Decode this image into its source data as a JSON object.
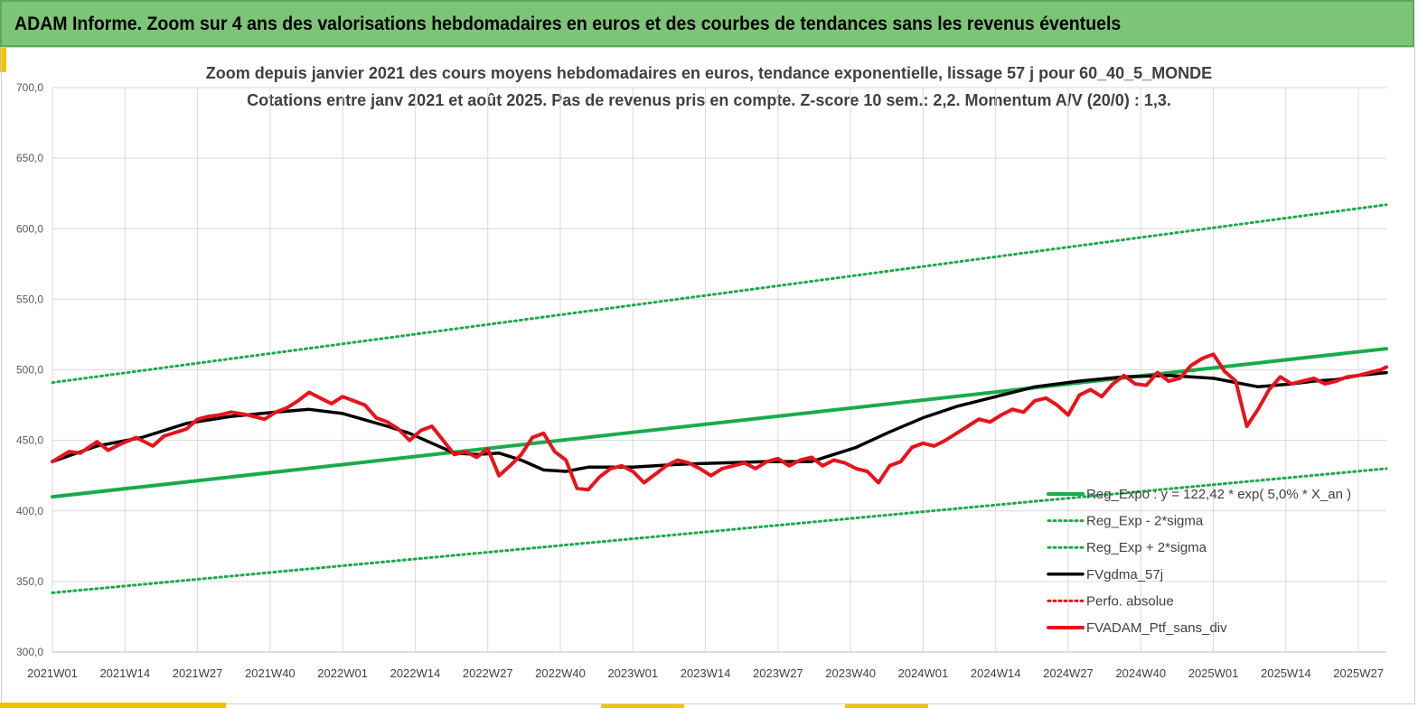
{
  "header": {
    "title": "ADAM Informe. Zoom sur 4 ans des valorisations hebdomadaires en euros et des courbes de tendances sans les revenus éventuels"
  },
  "chart_data": {
    "type": "line",
    "title": "Zoom depuis janvier 2021 des cours moyens hebdomadaires  en euros, tendance exponentielle, lissage 57 j pour 60_40_5_MONDE",
    "subtitle": "Cotations entre janv 2021 et août 2025. Pas de revenus pris en compte. Z-score 10 sem.: 2,2. Momentum A/V (20/0) : 1,3.",
    "xlabel": "",
    "ylabel": "",
    "ylim": [
      300,
      700
    ],
    "y_ticks": [
      "300,0",
      "350,0",
      "400,0",
      "450,0",
      "500,0",
      "550,0",
      "600,0",
      "650,0",
      "700,0"
    ],
    "x_ticks": [
      "2021W01",
      "2021W14",
      "2021W27",
      "2021W40",
      "2022W01",
      "2022W14",
      "2022W27",
      "2022W40",
      "2023W01",
      "2023W14",
      "2023W27",
      "2023W40",
      "2024W01",
      "2024W14",
      "2024W27",
      "2024W40",
      "2025W01",
      "2025W14",
      "2025W27"
    ],
    "x_range_weeks": [
      0,
      239
    ],
    "grid": true,
    "legend_position": "bottom-right",
    "series": [
      {
        "name": "Reg_Expo : y = 122,42 * exp( 5,0% *  X_an )",
        "style": "solid-thick",
        "color": "#1aab4a",
        "x": [
          0,
          239
        ],
        "values": [
          410,
          515
        ]
      },
      {
        "name": "Reg_Exp - 2*sigma",
        "style": "dotted",
        "color": "#1aab4a",
        "x": [
          0,
          239
        ],
        "values": [
          342,
          430
        ]
      },
      {
        "name": "Reg_Exp + 2*sigma",
        "style": "dotted",
        "color": "#1aab4a",
        "x": [
          0,
          239
        ],
        "values": [
          491,
          617
        ]
      },
      {
        "name": "FVgdma_57j",
        "style": "solid",
        "color": "#000000",
        "x": [
          0,
          8,
          16,
          24,
          32,
          40,
          46,
          52,
          60,
          64,
          68,
          72,
          76,
          80,
          84,
          88,
          92,
          96,
          100,
          104,
          108,
          112,
          120,
          128,
          136,
          144,
          150,
          156,
          162,
          168,
          176,
          184,
          192,
          200,
          208,
          216,
          222,
          226,
          230,
          234,
          239
        ],
        "values": [
          435,
          446,
          452,
          462,
          467,
          470,
          472,
          469,
          460,
          455,
          448,
          441,
          440,
          441,
          436,
          429,
          428,
          431,
          431,
          431,
          432,
          433,
          434,
          435,
          435,
          445,
          456,
          466,
          474,
          480,
          488,
          492,
          495,
          496,
          494,
          488,
          490,
          492,
          493,
          496,
          498
        ]
      },
      {
        "name": "Perfo. absolue",
        "style": "dotted",
        "color": "#e8131b",
        "x": [],
        "values": []
      },
      {
        "name": "FVADAM_Ptf_sans_div",
        "style": "solid-thick",
        "color": "#e8131b",
        "x": [
          0,
          3,
          5,
          8,
          10,
          12,
          15,
          18,
          20,
          24,
          26,
          28,
          30,
          32,
          35,
          38,
          40,
          42,
          44,
          46,
          48,
          50,
          52,
          54,
          56,
          58,
          60,
          62,
          64,
          66,
          68,
          70,
          72,
          74,
          76,
          78,
          80,
          82,
          84,
          86,
          88,
          90,
          92,
          94,
          96,
          98,
          100,
          102,
          104,
          106,
          108,
          110,
          112,
          114,
          116,
          118,
          120,
          122,
          124,
          126,
          128,
          130,
          132,
          134,
          136,
          138,
          140,
          142,
          144,
          146,
          148,
          150,
          152,
          154,
          156,
          158,
          160,
          162,
          164,
          166,
          168,
          170,
          172,
          174,
          176,
          178,
          180,
          182,
          184,
          186,
          188,
          190,
          192,
          194,
          196,
          198,
          200,
          202,
          204,
          206,
          208,
          210,
          212,
          214,
          216,
          218,
          220,
          222,
          224,
          226,
          228,
          230,
          232,
          234,
          236,
          238,
          239
        ],
        "values": [
          435,
          442,
          441,
          449,
          443,
          447,
          452,
          446,
          453,
          458,
          465,
          467,
          468,
          470,
          468,
          465,
          470,
          473,
          478,
          484,
          480,
          476,
          481,
          478,
          475,
          466,
          463,
          458,
          450,
          457,
          460,
          450,
          440,
          442,
          438,
          444,
          425,
          432,
          440,
          452,
          455,
          442,
          436,
          416,
          415,
          424,
          430,
          432,
          428,
          420,
          426,
          432,
          436,
          434,
          430,
          425,
          430,
          432,
          434,
          430,
          435,
          437,
          432,
          436,
          438,
          432,
          436,
          434,
          430,
          428,
          420,
          432,
          435,
          445,
          448,
          446,
          450,
          455,
          460,
          465,
          463,
          468,
          472,
          470,
          478,
          480,
          475,
          468,
          482,
          486,
          481,
          490,
          496,
          490,
          489,
          498,
          492,
          494,
          503,
          508,
          511,
          499,
          492,
          460,
          472,
          486,
          495,
          490,
          492,
          494,
          490,
          492,
          495,
          496,
          498,
          500,
          502
        ]
      }
    ]
  }
}
